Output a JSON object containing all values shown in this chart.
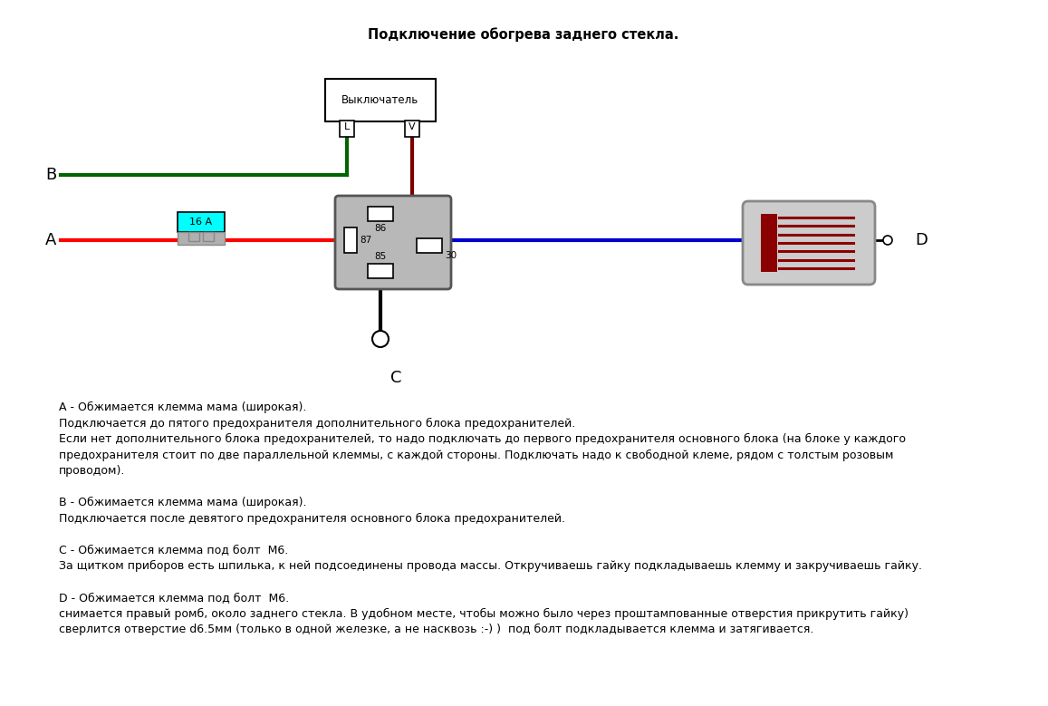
{
  "title": "Подключение обогрева заднего стекла.",
  "title_fontsize": 10.5,
  "bg_color": "#ffffff",
  "fig_width": 11.57,
  "fig_height": 7.79,
  "wire_red_color": "#ff0000",
  "wire_green_color": "#006400",
  "wire_blue_color": "#0000cd",
  "wire_darkred_color": "#7B0000",
  "wire_black_color": "#000000",
  "text_lines": [
    "А - Обжимается клемма мама (широкая).",
    "Подключается до пятого предохранителя дополнительного блока предохранителей.",
    "Если нет дополнительного блока предохранителей, то надо подключать до первого предохранителя основного блока (на блоке у каждого",
    "предохранителя стоит по две параллельной клеммы, с каждой стороны. Подключать надо к свободной клеме, рядом с толстым розовым",
    "проводом).",
    "",
    "В - Обжимается клемма мама (широкая).",
    "Подключается после девятого предохранителя основного блока предохранителей.",
    "",
    "С - Обжимается клемма под болт  М6.",
    "За щитком приборов есть шпилька, к ней подсоединены провода массы. Откручиваешь гайку подкладываешь клемму и закручиваешь гайку.",
    "",
    "D - Обжимается клемма под болт  М6.",
    "снимается правый ромб, около заднего стекла. В удобном месте, чтобы можно было через проштампованные отверстия прикрутить гайку)",
    "сверлится отверстие d6.5мм (только в одной железке, а не насквозь :-) )  под болт подкладывается клемма и затягивается."
  ]
}
